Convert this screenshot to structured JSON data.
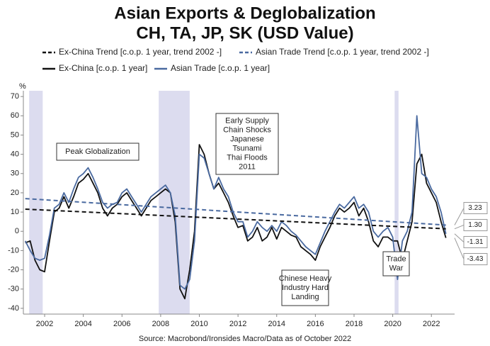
{
  "chart_data": {
    "type": "line",
    "title": [
      "Asian Exports & Deglobalization",
      "CH, TA, JP, SK (USD Value)"
    ],
    "y_unit": "%",
    "source": "Source: Macrobond/Ironsides Macro/Data as of October 2022",
    "xlim": [
      2000.9,
      2023.2
    ],
    "xticks": [
      2002,
      2004,
      2006,
      2008,
      2010,
      2012,
      2014,
      2016,
      2018,
      2020,
      2022
    ],
    "ylim": [
      -43,
      73
    ],
    "yticks": [
      -40,
      -30,
      -20,
      -10,
      0,
      10,
      20,
      30,
      40,
      50,
      60,
      70
    ],
    "grid": false,
    "shaded_periods": [
      [
        2001.2,
        2001.9
      ],
      [
        2007.9,
        2009.5
      ],
      [
        2020.1,
        2020.3
      ]
    ],
    "shade_color": "#dcdcef",
    "x": [
      2001,
      2001.25,
      2001.5,
      2001.75,
      2002,
      2002.25,
      2002.5,
      2002.75,
      2003,
      2003.25,
      2003.5,
      2003.75,
      2004,
      2004.25,
      2004.5,
      2004.75,
      2005,
      2005.25,
      2005.5,
      2005.75,
      2006,
      2006.25,
      2006.5,
      2006.75,
      2007,
      2007.25,
      2007.5,
      2007.75,
      2008,
      2008.25,
      2008.5,
      2008.75,
      2009,
      2009.25,
      2009.5,
      2009.75,
      2010,
      2010.25,
      2010.5,
      2010.75,
      2011,
      2011.25,
      2011.5,
      2011.75,
      2012,
      2012.25,
      2012.5,
      2012.75,
      2013,
      2013.25,
      2013.5,
      2013.75,
      2014,
      2014.25,
      2014.5,
      2014.75,
      2015,
      2015.25,
      2015.5,
      2015.75,
      2016,
      2016.25,
      2016.5,
      2016.75,
      2017,
      2017.25,
      2017.5,
      2017.75,
      2018,
      2018.25,
      2018.5,
      2018.75,
      2019,
      2019.25,
      2019.5,
      2019.75,
      2020,
      2020.25,
      2020.5,
      2020.75,
      2021,
      2021.25,
      2021.5,
      2021.75,
      2022,
      2022.25,
      2022.5,
      2022.75
    ],
    "series": [
      {
        "name": "Ex-China Trend [c.o.p. 1 year, trend 2002 -]",
        "color": "#111111",
        "dashed": true,
        "x": [
          2001,
          2022.75
        ],
        "values": [
          11.5,
          1.3
        ]
      },
      {
        "name": "Asian Trade Trend [c.o.p. 1 year, trend 2002 -]",
        "color": "#4a6aa0",
        "dashed": true,
        "x": [
          2001,
          2022.75
        ],
        "values": [
          17,
          3.23
        ]
      },
      {
        "name": "Ex-China [c.o.p. 1 year]",
        "color": "#111111",
        "dashed": false,
        "values": [
          -6,
          -5,
          -15,
          -20,
          -21,
          -5,
          10,
          12,
          18,
          12,
          18,
          25,
          27,
          30,
          25,
          20,
          12,
          8,
          12,
          14,
          18,
          20,
          16,
          12,
          8,
          12,
          16,
          18,
          20,
          22,
          20,
          5,
          -30,
          -35,
          -20,
          0,
          45,
          40,
          30,
          22,
          25,
          20,
          15,
          8,
          2,
          3,
          -5,
          -3,
          2,
          -5,
          -3,
          2,
          -4,
          2,
          0,
          -2,
          -3,
          -8,
          -10,
          -12,
          -15,
          -8,
          -3,
          2,
          8,
          12,
          10,
          12,
          15,
          8,
          12,
          5,
          -5,
          -8,
          -3,
          -3,
          -5,
          -5,
          -15,
          -5,
          5,
          35,
          40,
          25,
          20,
          15,
          5,
          -3.43
        ]
      },
      {
        "name": "Asian Trade [c.o.p. 1 year]",
        "color": "#4a6aa0",
        "dashed": false,
        "values": [
          -5,
          -10,
          -14,
          -15,
          -14,
          -2,
          12,
          14,
          20,
          15,
          22,
          28,
          30,
          33,
          28,
          22,
          15,
          12,
          14,
          15,
          20,
          22,
          18,
          14,
          10,
          14,
          18,
          20,
          22,
          24,
          20,
          8,
          -28,
          -30,
          -25,
          -5,
          40,
          38,
          30,
          22,
          28,
          22,
          18,
          10,
          5,
          5,
          -3,
          0,
          5,
          2,
          0,
          3,
          0,
          5,
          3,
          0,
          -2,
          -5,
          -8,
          -10,
          -12,
          -6,
          0,
          5,
          10,
          14,
          12,
          15,
          18,
          12,
          14,
          10,
          0,
          -3,
          0,
          2,
          -3,
          -25,
          -5,
          0,
          10,
          60,
          30,
          28,
          22,
          18,
          10,
          -1.31
        ]
      }
    ],
    "end_labels": [
      {
        "value": 3.23,
        "label": "3.23"
      },
      {
        "value": 1.3,
        "label": "1.30"
      },
      {
        "value": -1.31,
        "label": "-1.31"
      },
      {
        "value": -3.43,
        "label": "-3.43"
      }
    ],
    "annotations": [
      {
        "lines": [
          "Peak Globalization"
        ]
      },
      {
        "lines": [
          "Early Supply",
          "Chain Shocks",
          "Japanese",
          "Tsunami",
          "Thai Floods",
          "2011"
        ]
      },
      {
        "lines": [
          "Chinese Heavy",
          "Industry Hard",
          "Landing"
        ]
      },
      {
        "lines": [
          "Trade",
          "War"
        ]
      }
    ]
  }
}
